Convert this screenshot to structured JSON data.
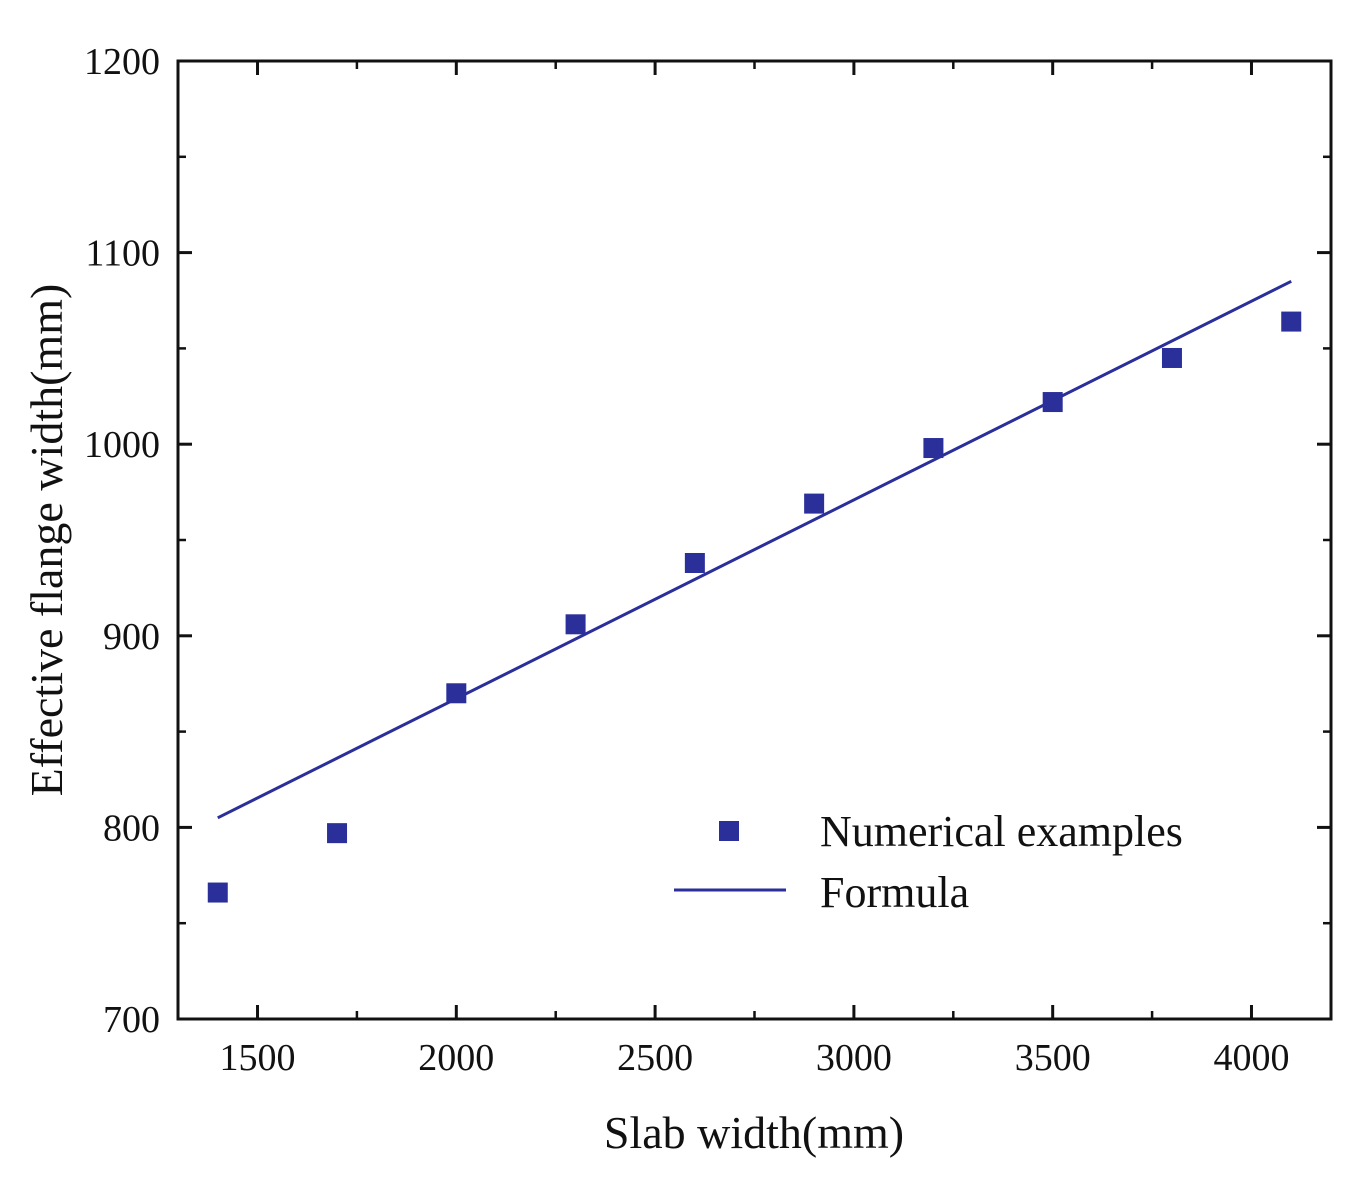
{
  "chart_data": {
    "type": "scatter",
    "title": "",
    "xlabel": "Slab width(mm)",
    "ylabel": "Effective flange width(mm)",
    "xlim": [
      1300,
      4200
    ],
    "ylim": [
      700,
      1200
    ],
    "x_ticks": [
      1500,
      2000,
      2500,
      3000,
      3500,
      4000
    ],
    "y_ticks": [
      700,
      800,
      900,
      1000,
      1100,
      1200
    ],
    "x_tick_labels": [
      "1500",
      "2000",
      "2500",
      "3000",
      "3500",
      "4000"
    ],
    "y_tick_labels": [
      "700",
      "800",
      "900",
      "1000",
      "1100",
      "1200"
    ],
    "grid": false,
    "legend_position": "bottom-right",
    "series": [
      {
        "name": "Numerical examples",
        "kind": "scatter",
        "marker": "square",
        "color": "#2b2f9a",
        "x": [
          1400,
          1700,
          2000,
          2300,
          2600,
          2900,
          3200,
          3500,
          3800,
          4100
        ],
        "y": [
          766,
          797,
          870,
          906,
          938,
          969,
          998,
          1022,
          1045,
          1064
        ]
      },
      {
        "name": "Formula",
        "kind": "line",
        "color": "#2b2f9a",
        "x": [
          1400,
          4100
        ],
        "y": [
          805,
          1085
        ]
      }
    ]
  }
}
